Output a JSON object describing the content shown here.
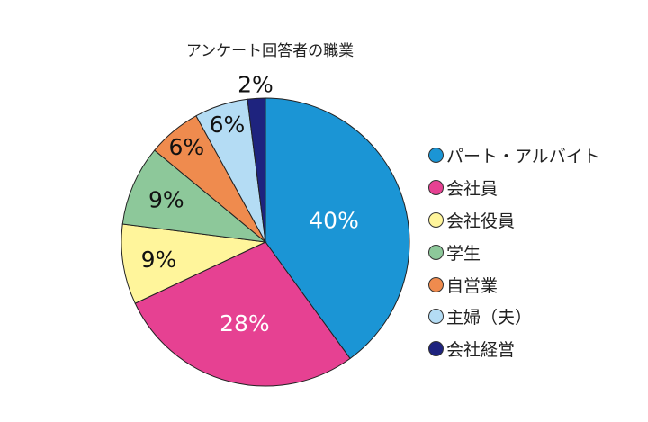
{
  "chart_data": {
    "type": "pie",
    "title": "アンケート回答者の職業",
    "categories": [
      "パート・アルバイト",
      "会社員",
      "会社役員",
      "学生",
      "自営業",
      "主婦（夫）",
      "会社経営"
    ],
    "values": [
      40,
      28,
      9,
      9,
      6,
      6,
      2
    ],
    "labels": [
      "40%",
      "28%",
      "9%",
      "9%",
      "6%",
      "6%",
      "2%"
    ],
    "colors": [
      "#1b95d5",
      "#e64192",
      "#fff59b",
      "#8dc89a",
      "#ef8b4e",
      "#b4dcf4",
      "#1e237e"
    ],
    "label_colors": [
      "#ffffff",
      "#ffffff",
      "#111111",
      "#111111",
      "#111111",
      "#111111",
      "#111111"
    ],
    "legend_position": "right",
    "start": "top",
    "direction": "clockwise"
  }
}
